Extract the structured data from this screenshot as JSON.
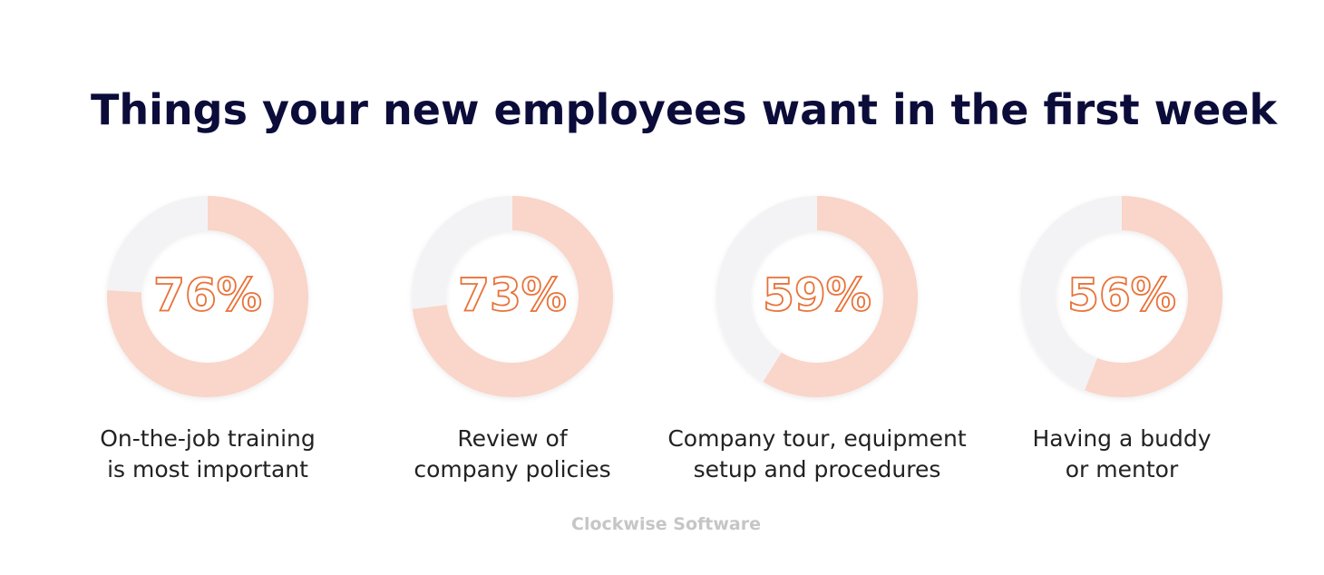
{
  "chart_data": {
    "type": "donut",
    "title": "Things your new employees want in the first week",
    "categories": [
      [
        "On-the-job training",
        "is most important"
      ],
      [
        "Review of",
        "company policies"
      ],
      [
        "Company tour, equipment",
        "setup and procedures"
      ],
      [
        "Having a buddy",
        "or mentor"
      ]
    ],
    "values": [
      76,
      73,
      59,
      56
    ],
    "value_labels": [
      "76%",
      "73%",
      "59%",
      "56%"
    ],
    "color": "#fad5c9",
    "track_color": "#f3f3f6",
    "label_color": "#e8733a",
    "watermark": "Clockwise Software"
  }
}
